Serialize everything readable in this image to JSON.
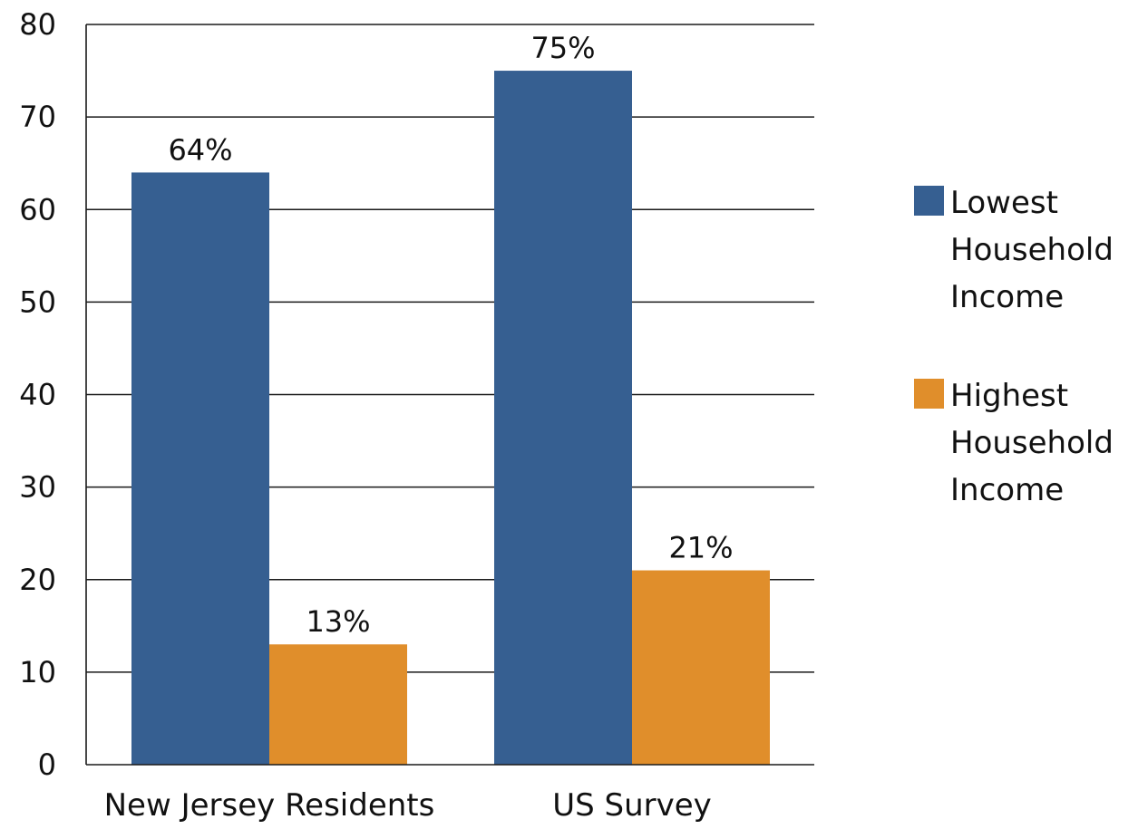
{
  "chart_data": {
    "type": "bar",
    "title": "",
    "xlabel": "",
    "ylabel": "",
    "ylim": [
      0,
      80
    ],
    "yticks": [
      0,
      10,
      20,
      30,
      40,
      50,
      60,
      70,
      80
    ],
    "grid": true,
    "legend_position": "right",
    "categories": [
      "New Jersey Residents",
      "US Survey"
    ],
    "series": [
      {
        "name": "Lowest Household Income",
        "legend_lines": [
          "Lowest",
          "Household",
          "Income"
        ],
        "color": "#365f91",
        "values": [
          64,
          75
        ],
        "labels": [
          "64%",
          "75%"
        ]
      },
      {
        "name": "Highest Household Income",
        "legend_lines": [
          "Highest",
          "Household",
          "Income"
        ],
        "color": "#e08e2b",
        "values": [
          13,
          21
        ],
        "labels": [
          "13%",
          "21%"
        ]
      }
    ]
  }
}
